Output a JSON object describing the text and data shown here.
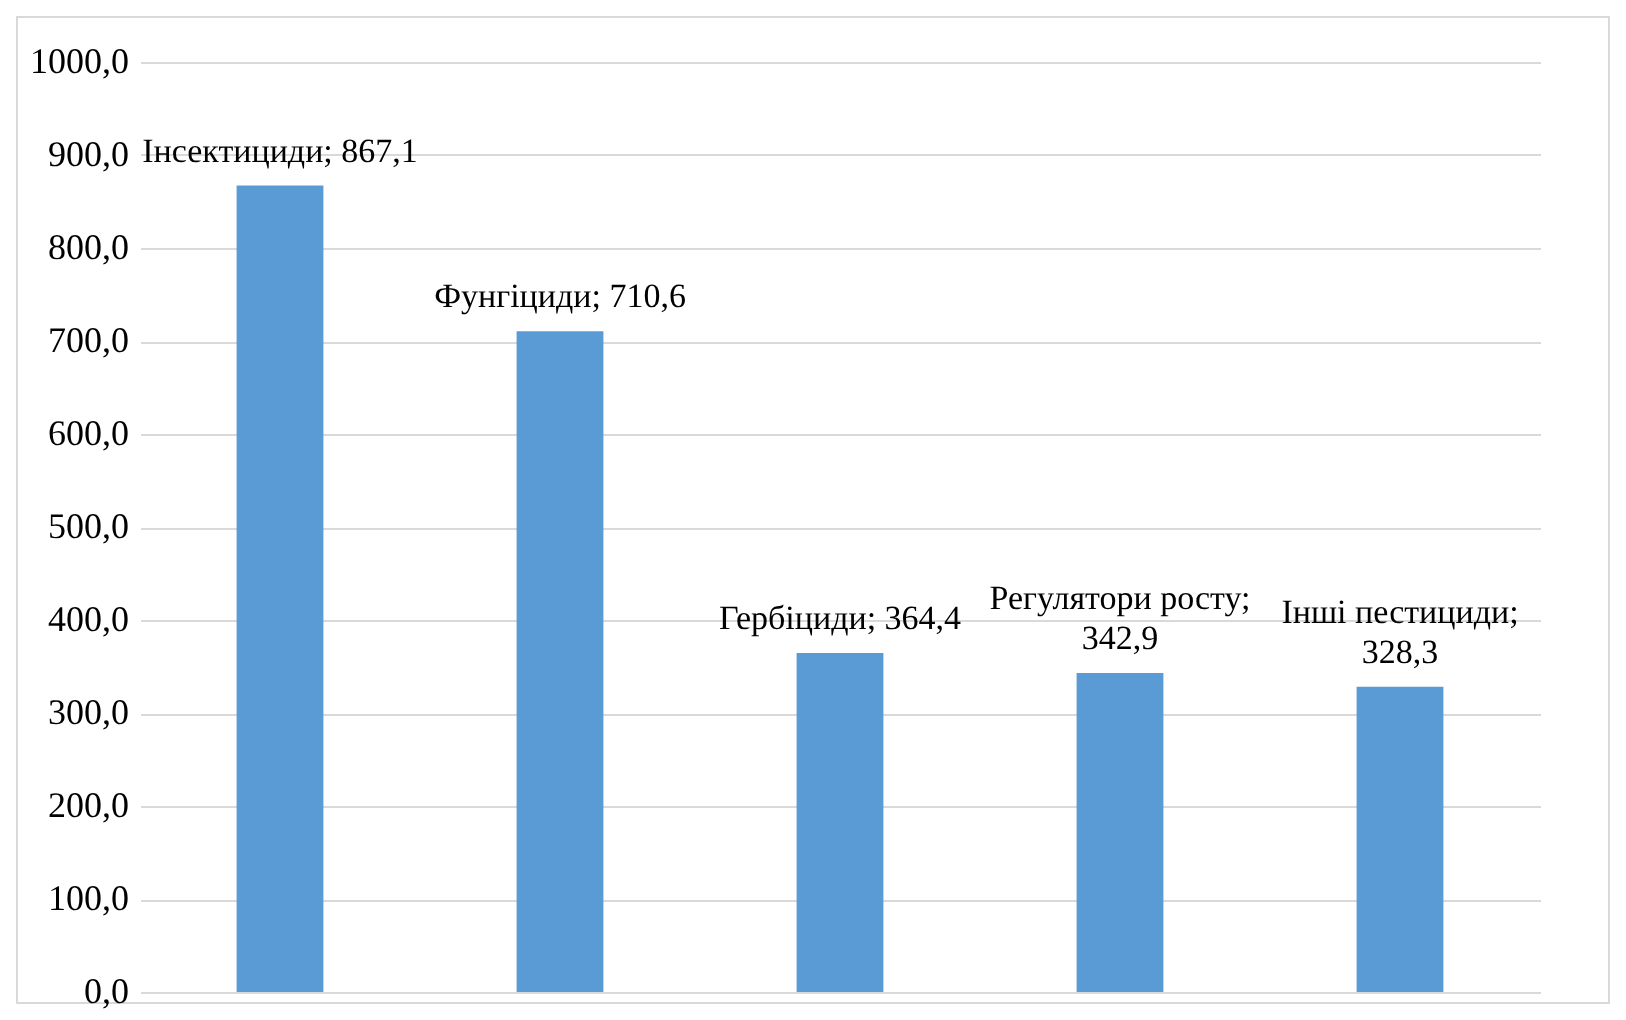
{
  "chart_data": {
    "type": "bar",
    "categories": [
      null,
      null,
      null,
      null,
      null
    ],
    "values": [
      867.1,
      710.6,
      364.4,
      342.9,
      328.3
    ],
    "value_labels": [
      "Інсектициди; 867,1",
      "Фунгіциди; 710,6",
      "Гербіциди; 364,4",
      "Регулятори росту; 342,9",
      "Інші пестициди; 328,3"
    ],
    "color": "#5b9bd5",
    "ylim": [
      0,
      1000
    ],
    "yticks": [
      {
        "value": 0,
        "label": "0,0"
      },
      {
        "value": 100,
        "label": "100,0"
      },
      {
        "value": 200,
        "label": "200,0"
      },
      {
        "value": 300,
        "label": "300,0"
      },
      {
        "value": 400,
        "label": "400,0"
      },
      {
        "value": 500,
        "label": "500,0"
      },
      {
        "value": 600,
        "label": "600,0"
      },
      {
        "value": 700,
        "label": "700,0"
      },
      {
        "value": 800,
        "label": "800,0"
      },
      {
        "value": 900,
        "label": "900,0"
      },
      {
        "value": 1000,
        "label": "1000,0"
      }
    ],
    "grid": "y",
    "tick_labels": "y"
  }
}
